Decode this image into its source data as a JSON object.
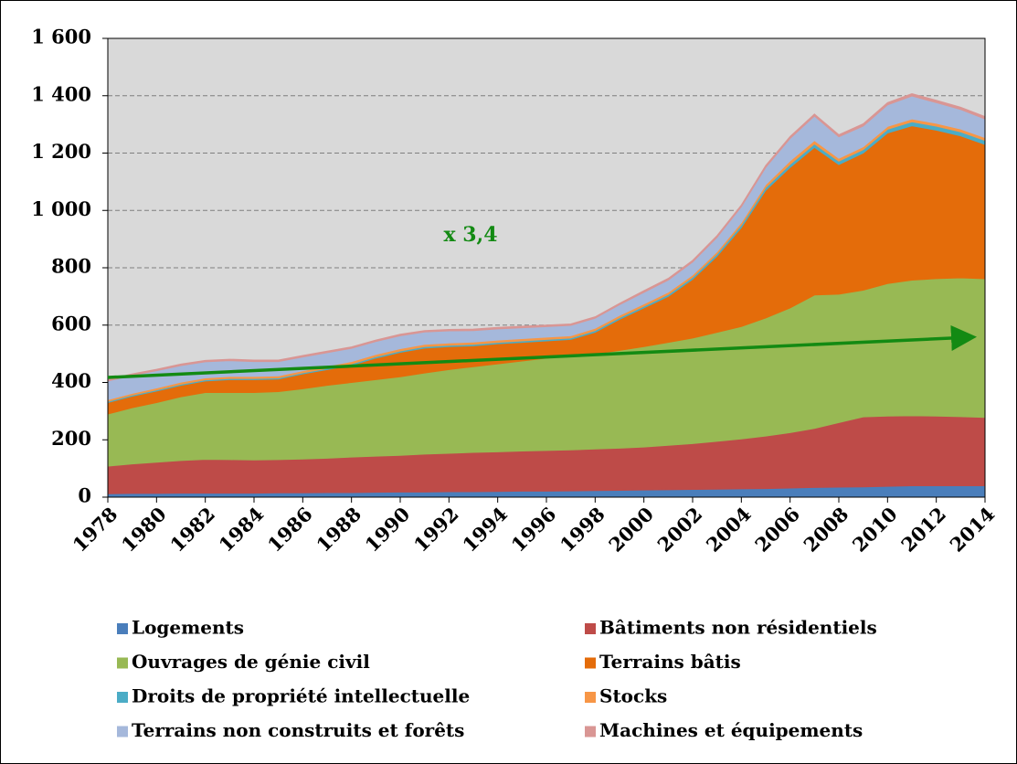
{
  "chart_data": {
    "type": "stacked_area",
    "annotations": [
      "x 3,4"
    ],
    "x": [
      1978,
      1979,
      1980,
      1981,
      1982,
      1983,
      1984,
      1985,
      1986,
      1987,
      1988,
      1989,
      1990,
      1991,
      1992,
      1993,
      1994,
      1995,
      1996,
      1997,
      1998,
      1999,
      2000,
      2001,
      2002,
      2003,
      2004,
      2005,
      2006,
      2007,
      2008,
      2009,
      2010,
      2011,
      2012,
      2013,
      2014
    ],
    "xlim": [
      1978,
      2014
    ],
    "xticks": [
      1978,
      1980,
      1982,
      1984,
      1986,
      1988,
      1990,
      1992,
      1994,
      1996,
      1998,
      2000,
      2002,
      2004,
      2006,
      2008,
      2010,
      2012,
      2014
    ],
    "ylim": [
      0,
      1600
    ],
    "yticks": [
      0,
      200,
      400,
      600,
      800,
      {
        "value": 1000,
        "label": "1 000"
      },
      {
        "value": 1200,
        "label": "1 200"
      },
      {
        "value": 1400,
        "label": "1 400"
      },
      {
        "value": 1600,
        "label": "1 600"
      }
    ],
    "grid": true,
    "legend": "bottom",
    "series": [
      {
        "name": "Logements",
        "color": "#4a7ebb",
        "values": [
          12,
          13,
          13,
          14,
          14,
          14,
          14,
          15,
          15,
          16,
          16,
          17,
          18,
          18,
          19,
          19,
          20,
          21,
          21,
          22,
          23,
          24,
          25,
          26,
          27,
          28,
          29,
          30,
          32,
          34,
          35,
          36,
          38,
          40,
          40,
          40,
          40
        ]
      },
      {
        "name": "Bâtiments non résidentiels",
        "color": "#be4b48",
        "values": [
          96,
          103,
          109,
          114,
          118,
          117,
          116,
          116,
          118,
          120,
          124,
          126,
          128,
          132,
          134,
          137,
          138,
          140,
          142,
          143,
          145,
          147,
          150,
          155,
          160,
          167,
          174,
          183,
          193,
          206,
          225,
          244,
          245,
          244,
          243,
          241,
          238
        ]
      },
      {
        "name": "Ouvrages de génie civil",
        "color": "#98b954",
        "values": [
          182,
          196,
          208,
          222,
          233,
          234,
          235,
          237,
          245,
          254,
          260,
          267,
          274,
          283,
          292,
          299,
          307,
          314,
          322,
          327,
          332,
          341,
          350,
          359,
          368,
          380,
          392,
          412,
          435,
          465,
          448,
          442,
          462,
          473,
          479,
          484,
          484
        ]
      },
      {
        "name": "Terrains bâtis",
        "color": "#e46c0a",
        "values": [
          40,
          40,
          40,
          40,
          40,
          45,
          45,
          44,
          52,
          55,
          60,
          75,
          85,
          87,
          80,
          73,
          70,
          65,
          60,
          58,
          75,
          108,
          135,
          160,
          205,
          265,
          345,
          445,
          490,
          515,
          452,
          478,
          525,
          538,
          518,
          495,
          468
        ]
      },
      {
        "name": "Droits de propriété intellectuelle",
        "color": "#4bacc6",
        "values": [
          4,
          4,
          4,
          4,
          4,
          4,
          4,
          4,
          4,
          4,
          5,
          5,
          5,
          5,
          5,
          5,
          5,
          5,
          5,
          5,
          6,
          6,
          6,
          7,
          7,
          8,
          9,
          10,
          11,
          12,
          12,
          12,
          13,
          14,
          14,
          14,
          14
        ]
      },
      {
        "name": "Stocks",
        "color": "#f79646",
        "values": [
          6,
          6,
          7,
          7,
          7,
          7,
          7,
          7,
          7,
          8,
          8,
          8,
          8,
          8,
          8,
          8,
          8,
          8,
          8,
          8,
          8,
          8,
          8,
          8,
          8,
          8,
          9,
          10,
          12,
          12,
          10,
          10,
          10,
          10,
          10,
          10,
          10
        ]
      },
      {
        "name": "Terrains non construits et forêts",
        "color": "#a5b8db",
        "values": [
          65,
          63,
          60,
          58,
          56,
          55,
          52,
          50,
          48,
          47,
          46,
          45,
          45,
          43,
          42,
          40,
          39,
          38,
          37,
          36,
          35,
          37,
          40,
          42,
          45,
          50,
          55,
          60,
          78,
          85,
          75,
          72,
          75,
          80,
          72,
          68,
          65
        ]
      },
      {
        "name": "Machines et équipements",
        "color": "#d99694",
        "values": [
          5,
          5,
          5,
          5,
          5,
          5,
          5,
          5,
          5,
          5,
          5,
          5,
          5,
          5,
          5,
          5,
          5,
          5,
          5,
          5,
          5,
          5,
          6,
          6,
          6,
          6,
          6,
          7,
          7,
          7,
          7,
          8,
          8,
          8,
          8,
          8,
          8
        ]
      }
    ]
  }
}
